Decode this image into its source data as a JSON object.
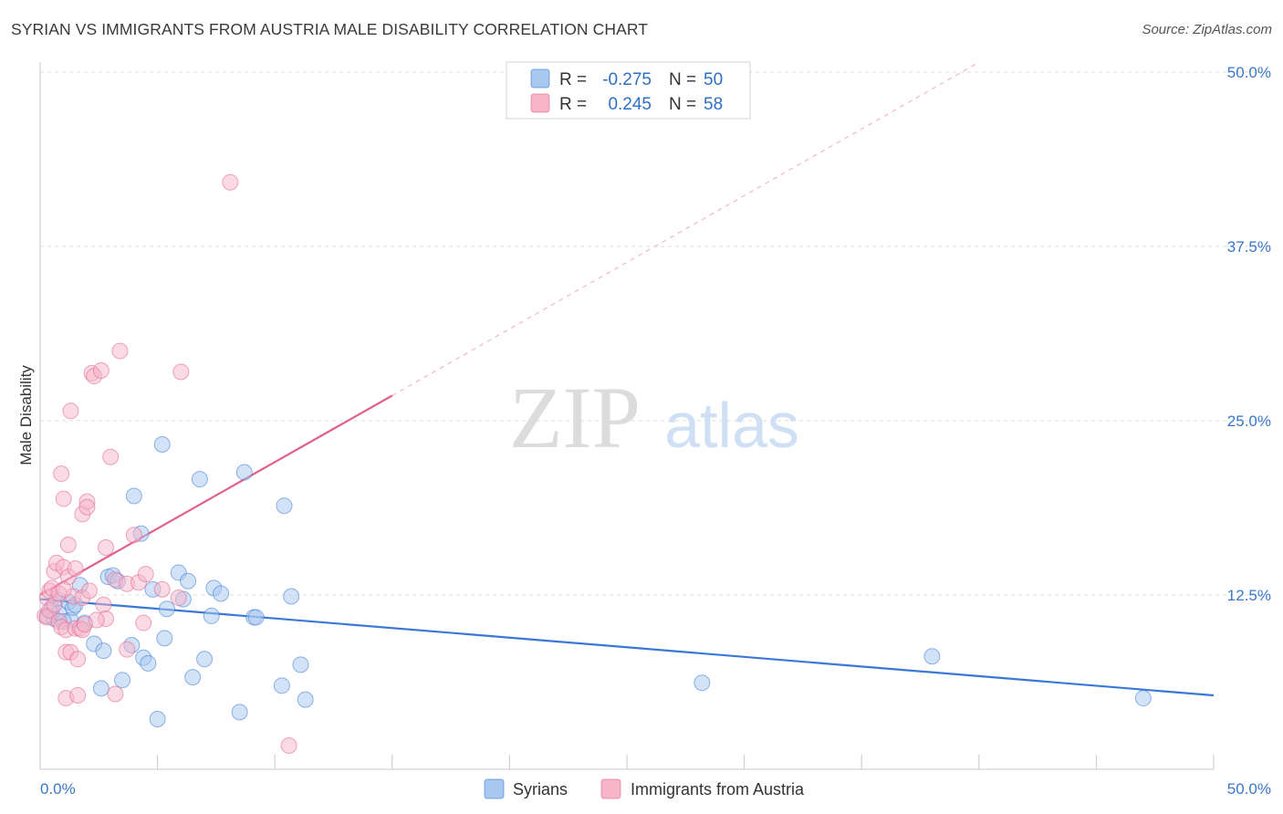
{
  "title": "SYRIAN VS IMMIGRANTS FROM AUSTRIA MALE DISABILITY CORRELATION CHART",
  "source": "Source: ZipAtlas.com",
  "watermark": {
    "zip": "ZIP",
    "atlas": "atlas"
  },
  "legend": {
    "rows": [
      {
        "r_label": "R =",
        "r_value": "-0.275",
        "n_label": "N =",
        "n_value": "50",
        "color": "#a8c8f0"
      },
      {
        "r_label": "R =",
        "r_value": "0.245",
        "n_label": "N =",
        "n_value": "58",
        "color": "#f6b5c9"
      }
    ]
  },
  "bottom_legend": [
    {
      "label": "Syrians",
      "color": "#a8c8f0"
    },
    {
      "label": "Immigrants from Austria",
      "color": "#f6b5c9"
    }
  ],
  "chart_data": {
    "type": "scatter",
    "ylabel": "Male Disability",
    "xlim": [
      0,
      50
    ],
    "ylim": [
      0,
      50
    ],
    "x_tick_labels": [
      "0.0%",
      "50.0%"
    ],
    "y_tick_labels": [
      "12.5%",
      "25.0%",
      "37.5%",
      "50.0%"
    ],
    "y_ticks": [
      12.5,
      25.0,
      37.5,
      50.0
    ],
    "grid": "horizontal dashed",
    "series": [
      {
        "name": "Syrians",
        "color": "#3a78d6",
        "fill": "#a8c8f0",
        "trend": {
          "x0": 0,
          "y0": 12.2,
          "x1": 50,
          "y1": 5.3,
          "dashed_to": null
        },
        "points": [
          [
            0.3,
            11.0
          ],
          [
            0.5,
            11.5
          ],
          [
            0.6,
            10.8
          ],
          [
            0.7,
            12.2
          ],
          [
            0.8,
            11.2
          ],
          [
            1.2,
            12.0
          ],
          [
            1.3,
            10.7
          ],
          [
            1.4,
            11.6
          ],
          [
            1.5,
            11.8
          ],
          [
            1.7,
            13.2
          ],
          [
            1.9,
            10.5
          ],
          [
            2.3,
            9.0
          ],
          [
            2.6,
            5.8
          ],
          [
            2.7,
            8.5
          ],
          [
            2.9,
            13.8
          ],
          [
            3.1,
            13.9
          ],
          [
            3.3,
            13.5
          ],
          [
            3.5,
            6.4
          ],
          [
            3.9,
            8.9
          ],
          [
            4.0,
            19.6
          ],
          [
            4.3,
            16.9
          ],
          [
            4.4,
            8.0
          ],
          [
            4.6,
            7.6
          ],
          [
            4.8,
            12.9
          ],
          [
            5.0,
            3.6
          ],
          [
            5.2,
            23.3
          ],
          [
            5.3,
            9.4
          ],
          [
            5.4,
            11.5
          ],
          [
            5.9,
            14.1
          ],
          [
            6.1,
            12.2
          ],
          [
            6.3,
            13.5
          ],
          [
            6.5,
            6.6
          ],
          [
            6.8,
            20.8
          ],
          [
            7.0,
            7.9
          ],
          [
            7.3,
            11.0
          ],
          [
            7.4,
            13.0
          ],
          [
            7.7,
            12.6
          ],
          [
            8.5,
            4.1
          ],
          [
            8.7,
            21.3
          ],
          [
            9.1,
            10.9
          ],
          [
            9.2,
            10.9
          ],
          [
            10.3,
            6.0
          ],
          [
            10.4,
            18.9
          ],
          [
            10.7,
            12.4
          ],
          [
            11.1,
            7.5
          ],
          [
            11.3,
            5.0
          ],
          [
            28.2,
            6.2
          ],
          [
            38.0,
            8.1
          ],
          [
            47.0,
            5.1
          ],
          [
            1.0,
            10.6
          ]
        ]
      },
      {
        "name": "Immigrants from Austria",
        "color": "#e0608e",
        "fill": "#f6b5c9",
        "trend": {
          "x0": 0,
          "y0": 12.5,
          "x1": 15,
          "y1": 26.8,
          "dashed_to": {
            "x": 40,
            "y": 50.7
          }
        },
        "points": [
          [
            0.2,
            11.0
          ],
          [
            0.3,
            12.3
          ],
          [
            0.3,
            10.9
          ],
          [
            0.4,
            12.8
          ],
          [
            0.4,
            11.4
          ],
          [
            0.5,
            13.0
          ],
          [
            0.6,
            14.2
          ],
          [
            0.6,
            11.8
          ],
          [
            0.7,
            14.8
          ],
          [
            0.8,
            10.6
          ],
          [
            0.8,
            12.6
          ],
          [
            0.9,
            21.2
          ],
          [
            0.9,
            10.2
          ],
          [
            1.0,
            19.4
          ],
          [
            1.0,
            14.5
          ],
          [
            1.1,
            10.0
          ],
          [
            1.1,
            8.4
          ],
          [
            1.1,
            5.1
          ],
          [
            1.2,
            16.1
          ],
          [
            1.2,
            13.8
          ],
          [
            1.3,
            8.4
          ],
          [
            1.3,
            25.7
          ],
          [
            1.4,
            12.4
          ],
          [
            1.5,
            14.4
          ],
          [
            1.5,
            10.1
          ],
          [
            1.6,
            7.9
          ],
          [
            1.6,
            5.3
          ],
          [
            1.7,
            10.1
          ],
          [
            1.8,
            10.0
          ],
          [
            1.8,
            12.3
          ],
          [
            1.8,
            18.3
          ],
          [
            1.9,
            10.4
          ],
          [
            2.0,
            19.2
          ],
          [
            2.0,
            18.8
          ],
          [
            2.1,
            12.8
          ],
          [
            2.2,
            28.4
          ],
          [
            2.3,
            28.2
          ],
          [
            2.6,
            28.6
          ],
          [
            2.7,
            11.8
          ],
          [
            2.8,
            15.9
          ],
          [
            2.8,
            10.8
          ],
          [
            3.0,
            22.4
          ],
          [
            3.2,
            13.6
          ],
          [
            3.2,
            5.4
          ],
          [
            3.4,
            30.0
          ],
          [
            3.7,
            13.3
          ],
          [
            3.7,
            8.6
          ],
          [
            4.0,
            16.8
          ],
          [
            4.2,
            13.4
          ],
          [
            4.4,
            10.5
          ],
          [
            4.5,
            14.0
          ],
          [
            5.2,
            12.9
          ],
          [
            5.9,
            12.3
          ],
          [
            6.0,
            28.5
          ],
          [
            8.1,
            42.1
          ],
          [
            10.6,
            1.7
          ],
          [
            2.4,
            10.7
          ],
          [
            1.0,
            12.9
          ]
        ]
      }
    ]
  }
}
